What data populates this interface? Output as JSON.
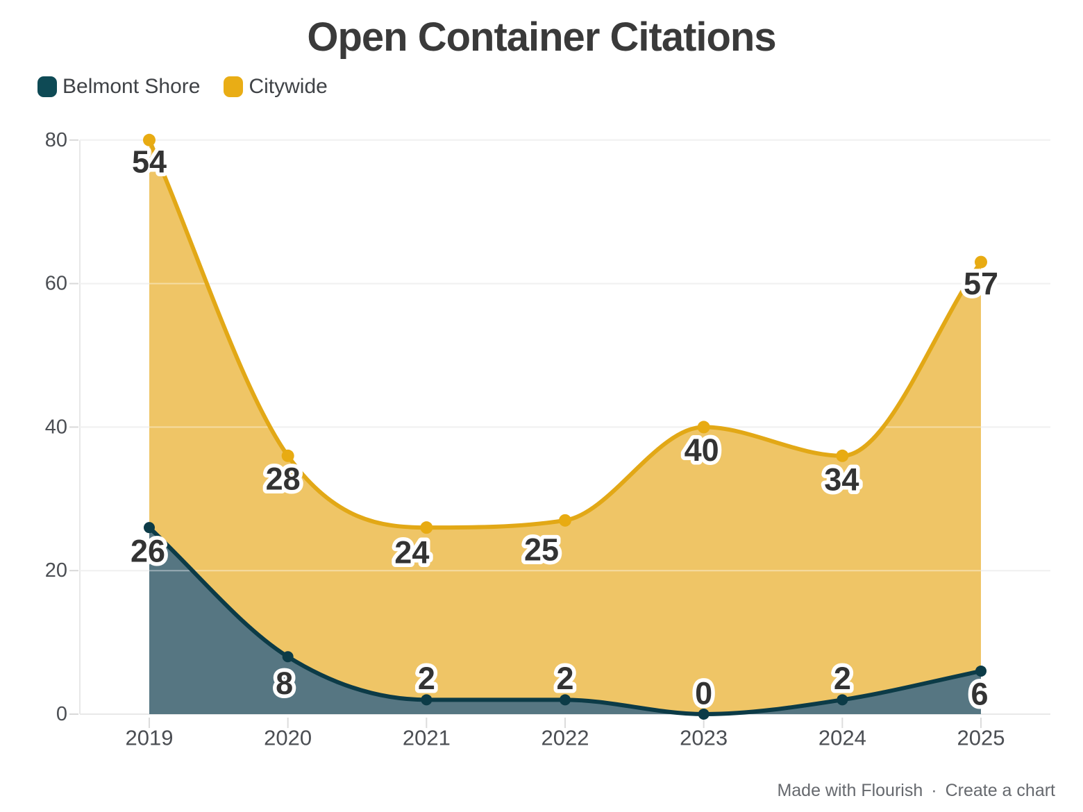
{
  "title": "Open Container Citations",
  "legend": {
    "items": [
      {
        "label": "Belmont Shore",
        "color": "#0e4a55"
      },
      {
        "label": "Citywide",
        "color": "#e9ad15"
      }
    ]
  },
  "footer": {
    "made_with": "Made with Flourish",
    "separator": "·",
    "create_chart": "Create a chart"
  },
  "chart_data": {
    "type": "area",
    "stacked": true,
    "title": "Open Container Citations",
    "categories": [
      "2019",
      "2020",
      "2021",
      "2022",
      "2023",
      "2024",
      "2025"
    ],
    "series": [
      {
        "name": "Belmont Shore",
        "values": [
          26,
          8,
          2,
          2,
          0,
          2,
          6
        ],
        "line_color": "#0c3b47",
        "fill_color": "#567682",
        "dot_color": "#0c3b47"
      },
      {
        "name": "Citywide",
        "values": [
          54,
          28,
          24,
          25,
          40,
          34,
          57
        ],
        "line_color": "#e2a816",
        "fill_color": "#efc566",
        "dot_color": "#e8ab12"
      }
    ],
    "ylim": [
      0,
      80
    ],
    "yticks": [
      0,
      20,
      40,
      60,
      80
    ],
    "grid": true,
    "legend_position": "top-left",
    "value_label_color": "#333333",
    "axis_text_color": "#4b4e53",
    "grid_color": "#e8e8e8"
  }
}
